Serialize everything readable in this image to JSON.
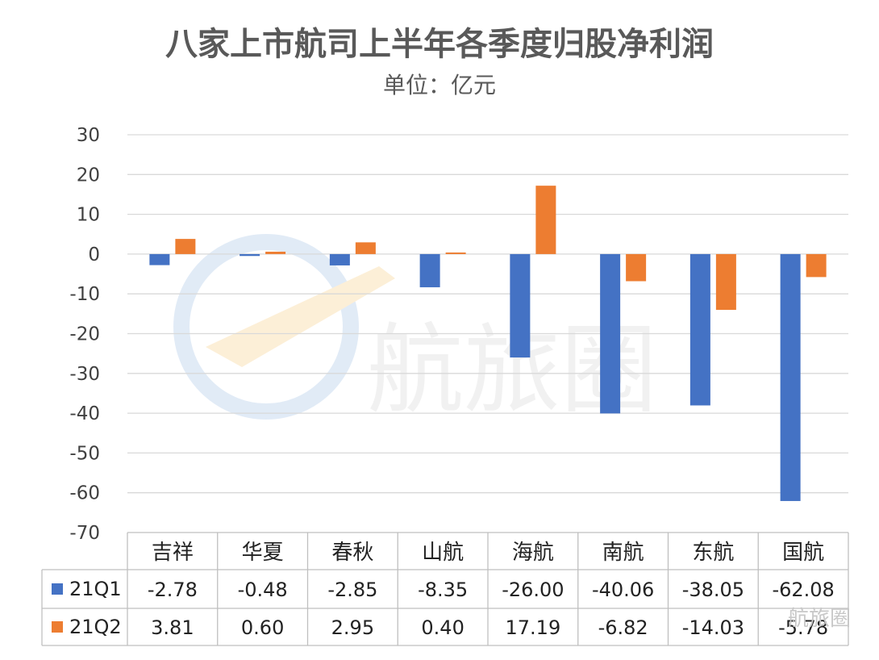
{
  "colors": {
    "q1": "#4472c4",
    "q2": "#ed7d31",
    "grid": "#d9d9d9",
    "table_border": "#bfbfbf"
  },
  "chart_data": {
    "type": "bar",
    "title": "八家上市航司上半年各季度归股净利润",
    "subtitle": "单位：亿元",
    "categories": [
      "吉祥",
      "华夏",
      "春秋",
      "山航",
      "海航",
      "南航",
      "东航",
      "国航"
    ],
    "series": [
      {
        "name": "21Q1",
        "values": [
          -2.78,
          -0.48,
          -2.85,
          -8.35,
          -26.0,
          -40.06,
          -38.05,
          -62.08
        ]
      },
      {
        "name": "21Q2",
        "values": [
          3.81,
          0.6,
          2.95,
          0.4,
          17.19,
          -6.82,
          -14.03,
          -5.78
        ]
      }
    ],
    "table_values": {
      "21Q1": [
        "-2.78",
        "-0.48",
        "-2.85",
        "-8.35",
        "-26.00",
        "-40.06",
        "-38.05",
        "-62.08"
      ],
      "21Q2": [
        "3.81",
        "0.60",
        "2.95",
        "0.40",
        "17.19",
        "-6.82",
        "-14.03",
        "-5.78"
      ]
    },
    "ylim": [
      -70,
      30
    ],
    "yticks": [
      30,
      20,
      10,
      0,
      -10,
      -20,
      -30,
      -40,
      -50,
      -60,
      -70
    ],
    "grid": true,
    "legend": "data-table-left"
  },
  "watermark": {
    "text": "航旅圈",
    "corner_text": "航旅圈"
  }
}
